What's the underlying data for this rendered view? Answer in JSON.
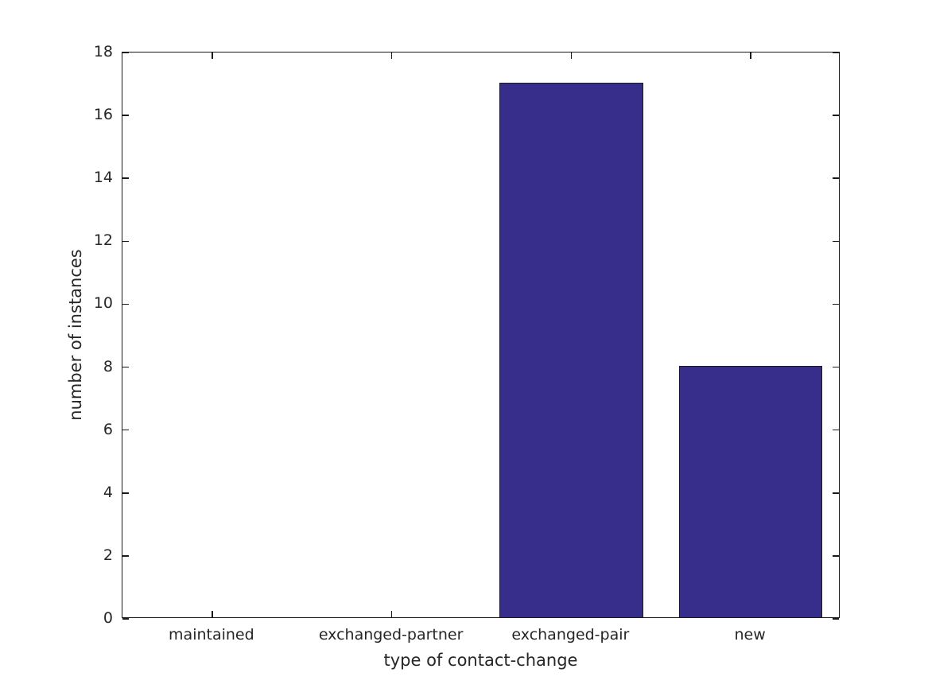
{
  "chart_data": {
    "type": "bar",
    "title": "",
    "categories": [
      "maintained",
      "exchanged-partner",
      "exchanged-pair",
      "new"
    ],
    "values": [
      0,
      0,
      17,
      8
    ],
    "xlabel": "type of contact-change",
    "ylabel": "number of instances",
    "ylim": [
      0,
      18
    ],
    "yticks": [
      0,
      2,
      4,
      6,
      8,
      10,
      12,
      14,
      16,
      18
    ],
    "bar_width_fraction": 0.8,
    "bar_color": "#372D8B",
    "bar_edge_color": "#1A1A1A",
    "axis_color": "#1A1A1A",
    "text_color": "#262626",
    "background": "#FFFFFF",
    "grid": false,
    "legend_position": "none"
  }
}
